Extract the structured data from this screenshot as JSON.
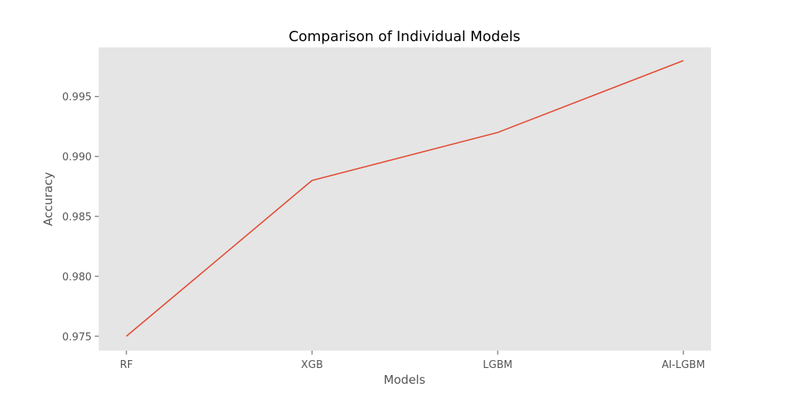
{
  "chart_data": {
    "type": "line",
    "title": "Comparison of Individual Models",
    "xlabel": "Models",
    "ylabel": "Accuracy",
    "categories": [
      "RF",
      "XGB",
      "LGBM",
      "AI-LGBM"
    ],
    "series": [
      {
        "values": [
          0.975,
          0.988,
          0.992,
          0.998
        ],
        "color": "#E24A33"
      }
    ],
    "ylim": [
      0.9738,
      0.9991
    ],
    "yticks": [
      0.975,
      0.98,
      0.985,
      0.99,
      0.995
    ],
    "ytick_labels": [
      "0.975",
      "0.980",
      "0.985",
      "0.990",
      "0.995"
    ],
    "grid": false,
    "background_color": "#E5E5E5",
    "legend": "none"
  }
}
